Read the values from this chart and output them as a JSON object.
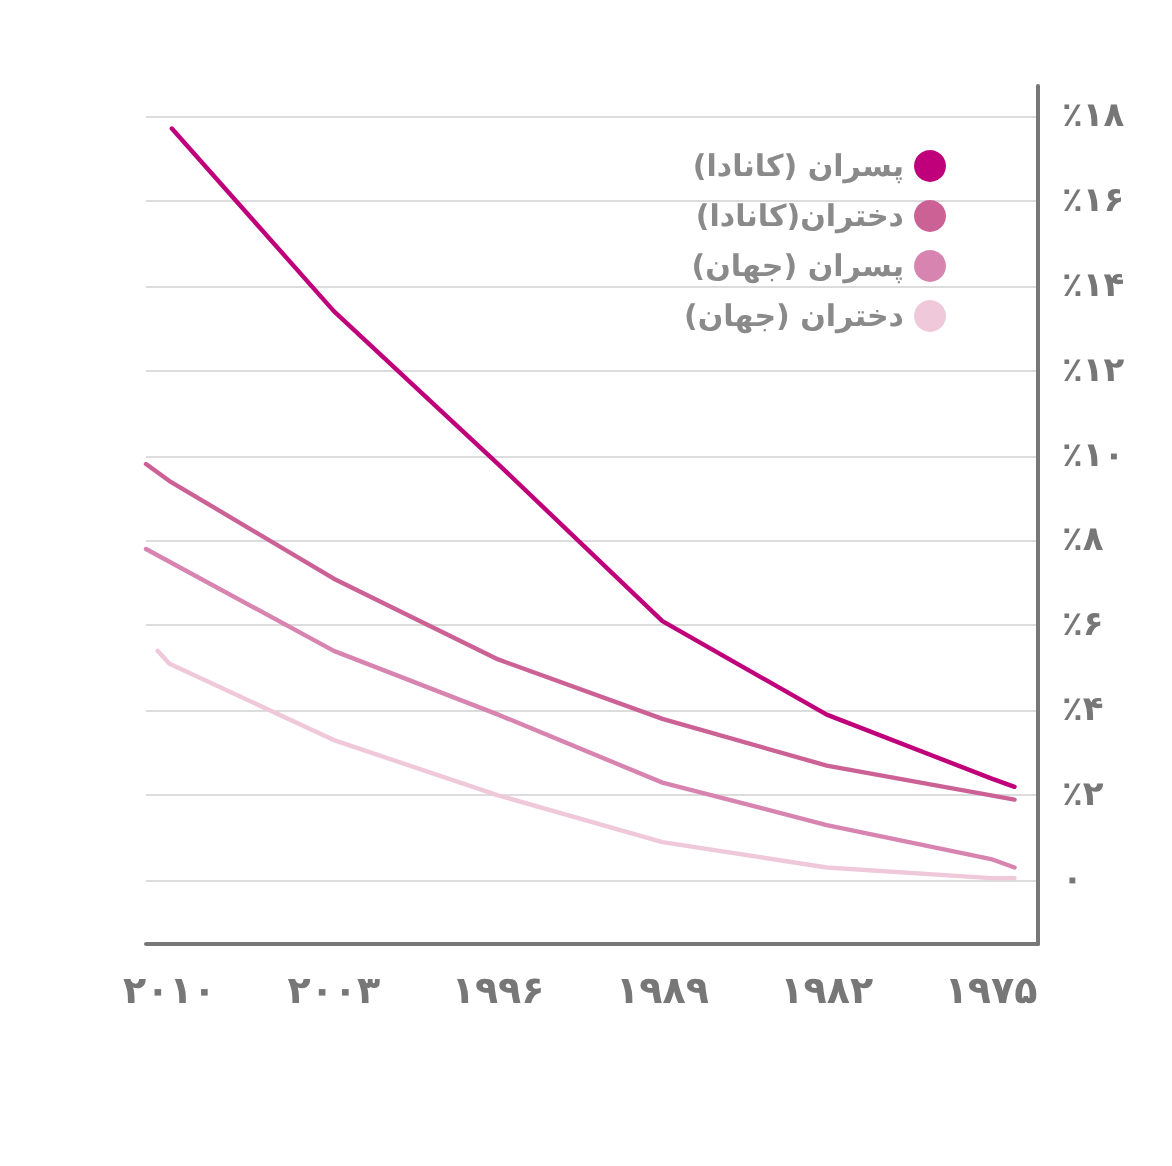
{
  "chart_data": {
    "type": "line",
    "xlim": [
      2011,
      1973
    ],
    "xticks": [
      {
        "value": 2010,
        "label": "۲۰۱۰"
      },
      {
        "value": 2003,
        "label": "۲۰۰۳"
      },
      {
        "value": 1996,
        "label": "۱۹۹۶"
      },
      {
        "value": 1989,
        "label": "۱۹۸۹"
      },
      {
        "value": 1982,
        "label": "۱۹۸۲"
      },
      {
        "value": 1975,
        "label": "۱۹۷۵"
      }
    ],
    "ylim": [
      -1.5,
      18.7
    ],
    "yticks": [
      {
        "value": 0,
        "label": "۰"
      },
      {
        "value": 2,
        "label": "٪۲"
      },
      {
        "value": 4,
        "label": "٪۴"
      },
      {
        "value": 6,
        "label": "٪۶"
      },
      {
        "value": 8,
        "label": "٪۸"
      },
      {
        "value": 10,
        "label": "٪۱۰"
      },
      {
        "value": 12,
        "label": "٪۱۲"
      },
      {
        "value": 14,
        "label": "٪۱۴"
      },
      {
        "value": 16,
        "label": "٪۱۶"
      },
      {
        "value": 18,
        "label": "٪۱۸"
      }
    ],
    "grid": "y",
    "legend": "top right",
    "marker": "none",
    "line_style": "solid",
    "series": [
      {
        "name": "پسران (کانادا)",
        "color": "#c0007a",
        "x": [
          2009.9,
          2003,
          1996,
          1989,
          1982,
          1975,
          1974
        ],
        "values": [
          17.7,
          13.4,
          9.8,
          6.1,
          3.9,
          2.4,
          2.2
        ]
      },
      {
        "name": "دختران(کانادا)",
        "color": "#cc6196",
        "x": [
          2011,
          2010,
          2003,
          1996,
          1989,
          1982,
          1975,
          1974
        ],
        "values": [
          9.8,
          9.4,
          7.1,
          5.2,
          3.8,
          2.7,
          2.0,
          1.9
        ]
      },
      {
        "name": "پسران (جهان)",
        "color": "#d884b0",
        "x": [
          2011,
          2010,
          2003,
          1996,
          1989,
          1982,
          1975,
          1974
        ],
        "values": [
          7.8,
          7.5,
          5.4,
          3.9,
          2.3,
          1.3,
          0.5,
          0.3
        ]
      },
      {
        "name": "دختران (جهان)",
        "color": "#efc8da",
        "x": [
          2010.5,
          2010,
          2003,
          1996,
          1989,
          1982,
          1975,
          1974
        ],
        "values": [
          5.4,
          5.1,
          3.3,
          2.0,
          0.9,
          0.3,
          0.05,
          0.05
        ]
      }
    ]
  }
}
